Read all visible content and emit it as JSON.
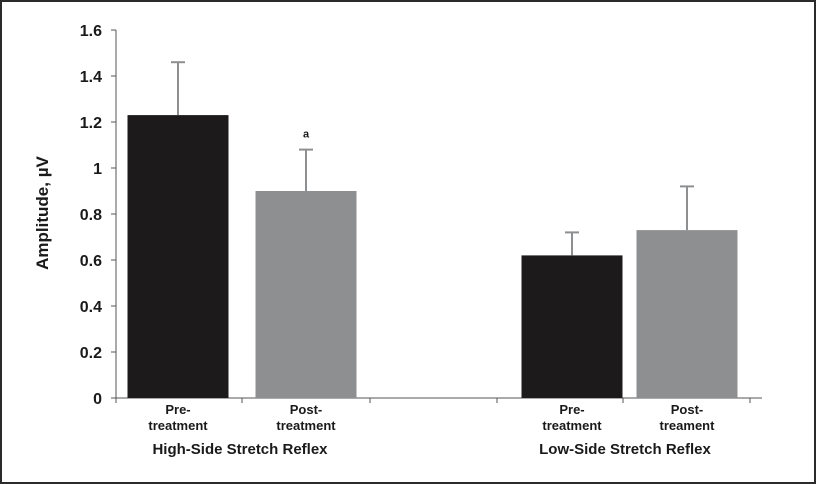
{
  "chart_data": {
    "type": "bar",
    "ylabel": "Amplitude, µV",
    "ylim": [
      0,
      1.6
    ],
    "yticks": [
      "0",
      "0.2",
      "0.4",
      "0.6",
      "0.8",
      "1",
      "1.2",
      "1.4",
      "1.6"
    ],
    "grid": false,
    "legend": "none",
    "groups": [
      {
        "label": "High-Side Stretch Reflex",
        "bars": [
          {
            "label_line1": "Pre-",
            "label_line2": "treatment",
            "value": 1.23,
            "error": 0.23,
            "color": "#1c1a1b",
            "annotation": ""
          },
          {
            "label_line1": "Post-",
            "label_line2": "treatment",
            "value": 0.9,
            "error": 0.18,
            "color": "#8e8f91",
            "annotation": "a"
          }
        ]
      },
      {
        "label": "Low-Side Stretch Reflex",
        "bars": [
          {
            "label_line1": "Pre-",
            "label_line2": "treatment",
            "value": 0.62,
            "error": 0.1,
            "color": "#1c1a1b",
            "annotation": ""
          },
          {
            "label_line1": "Post-",
            "label_line2": "treament",
            "value": 0.73,
            "error": 0.19,
            "color": "#8e8f91",
            "annotation": ""
          }
        ]
      }
    ]
  }
}
